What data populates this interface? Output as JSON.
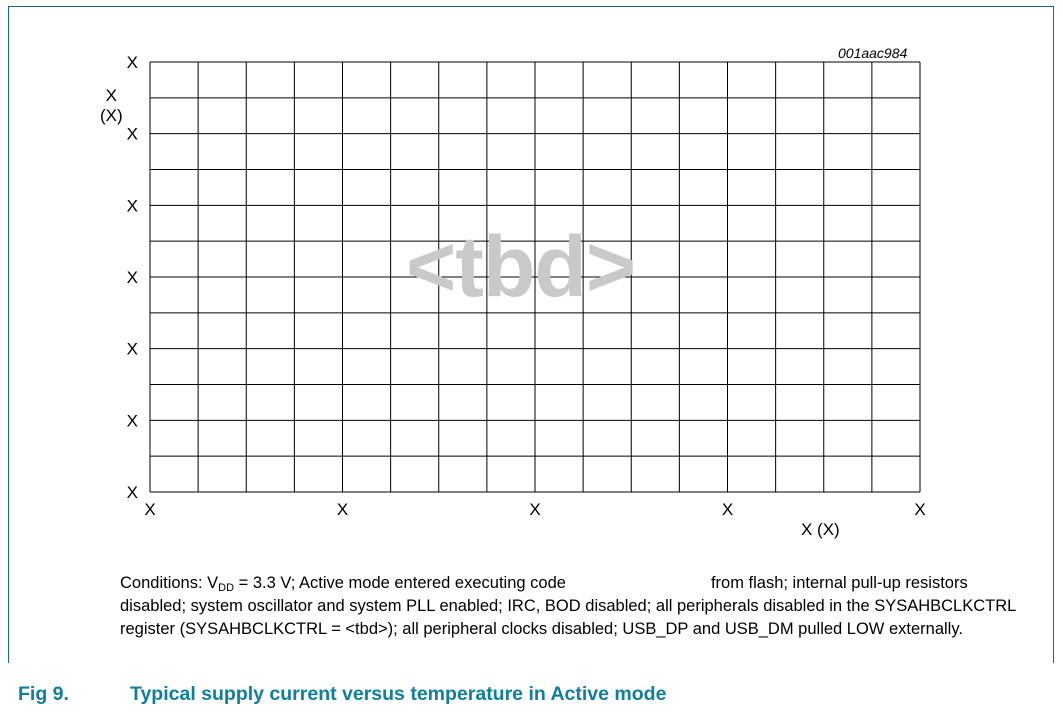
{
  "chart_data": {
    "type": "line",
    "chart_code": "001aac984",
    "ylabel_value": "X",
    "ylabel_unit": "(X)",
    "xlabel": "X (X)",
    "x_ticks": [
      "X",
      "X",
      "X",
      "X",
      "X"
    ],
    "y_ticks": [
      "X",
      "X",
      "X",
      "X",
      "X",
      "X",
      "X"
    ],
    "x_minor_divisions": 16,
    "y_minor_divisions": 12,
    "grid": true,
    "watermark": "<tbd>",
    "series": []
  },
  "conditions": {
    "prefix": "Conditions: V",
    "sub": "DD",
    "line1_a": " = 3.3 V; Active mode entered executing code",
    "line1_b": "from flash; internal",
    "rest": "pull-up resistors disabled; system oscillator and system PLL enabled; IRC, BOD disabled; all peripherals disabled in the SYSAHBCLKCTRL register (SYSAHBCLKCTRL = <tbd>); all peripheral clocks disabled; USB_DP and USB_DM pulled LOW externally."
  },
  "figure": {
    "number": "Fig 9.",
    "title": "Typical supply current versus temperature in Active mode"
  },
  "colors": {
    "frame": "#1a6a78",
    "caption": "#0f7f9b",
    "watermark": "#c9c9c9",
    "grid": "#000000"
  }
}
